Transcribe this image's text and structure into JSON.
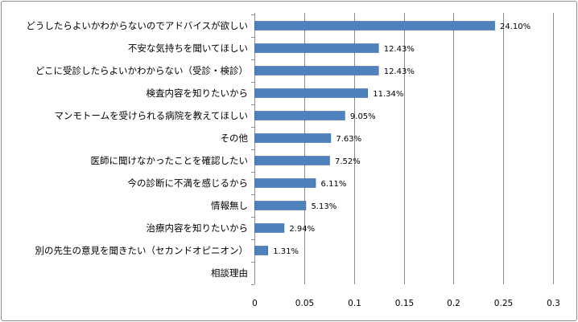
{
  "chart_data": {
    "type": "bar",
    "orientation": "horizontal",
    "categories": [
      "どうしたらよいかわからないのでアドバイスが欲しい",
      "不安な気持ちを聞いてほしい",
      "どこに受診したらよいかわからない（受診・検診）",
      "検査内容を知りたいから",
      "マンモトームを受けられる病院を教えてほしい",
      "その他",
      "医師に聞けなかったことを確認したい",
      "今の診断に不満を感じるから",
      "情報無し",
      "治療内容を知りたいから",
      "別の先生の意見を聞きたい（セカンドオピニオン）",
      "相談理由"
    ],
    "values": [
      0.241,
      0.1243,
      0.1243,
      0.1134,
      0.0905,
      0.0763,
      0.0752,
      0.0611,
      0.0513,
      0.0294,
      0.0131,
      null
    ],
    "data_labels": [
      "24.10%",
      "12.43%",
      "12.43%",
      "11.34%",
      "9.05%",
      "7.63%",
      "7.52%",
      "6.11%",
      "5.13%",
      "2.94%",
      "1.31%",
      ""
    ],
    "x_ticks": [
      "0",
      "0.05",
      "0.1",
      "0.15",
      "0.2",
      "0.25",
      "0.3"
    ],
    "xlim": [
      0,
      0.3
    ],
    "grid": "vertical",
    "legend": "none",
    "colors": {
      "bar": "#4f81bd",
      "bar_stroke": "#3a6aa3",
      "grid": "#8c8c8c",
      "text": "#000000"
    }
  }
}
